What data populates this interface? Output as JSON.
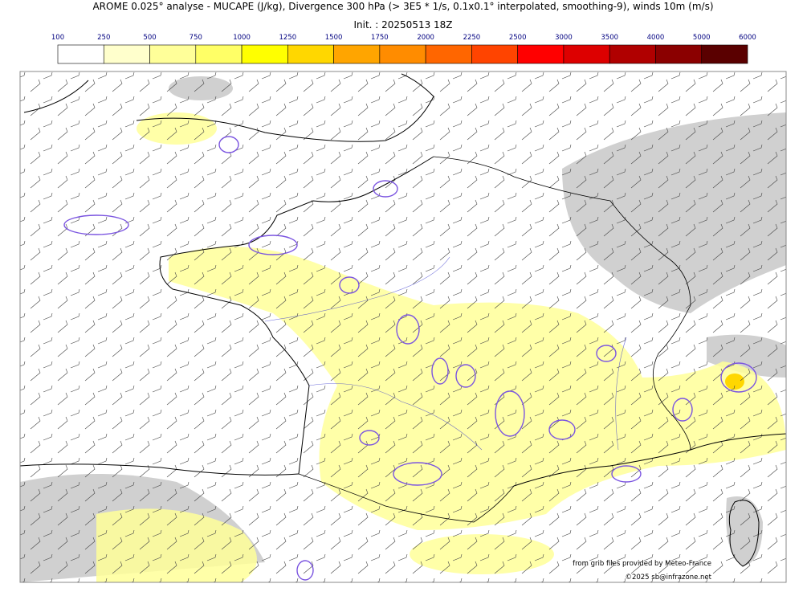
{
  "header": {
    "title": "AROME 0.025° analyse - MUCAPE (J/kg), Divergence 300 hPa (> 3E5 * 1/s, 0.1x0.1° interpolated, smoothing-9), winds 10m (m/s)",
    "subtitle": "Init. : 20250513 18Z"
  },
  "legend": {
    "levels": [
      100,
      250,
      500,
      750,
      1000,
      1250,
      1500,
      1750,
      2000,
      2250,
      2500,
      3000,
      3500,
      4000,
      5000,
      6000
    ],
    "colors": [
      "#ffffff",
      "#ffffcc",
      "#ffff99",
      "#ffff66",
      "#ffff00",
      "#ffd700",
      "#ffa500",
      "#ff8c00",
      "#ff6600",
      "#ff4400",
      "#ff0000",
      "#dd0000",
      "#b00000",
      "#8b0000",
      "#5a0000"
    ]
  },
  "credits": {
    "source": "from grib files provided by Meteo-France",
    "copyright": "©2025 sb@infrazone.net"
  }
}
